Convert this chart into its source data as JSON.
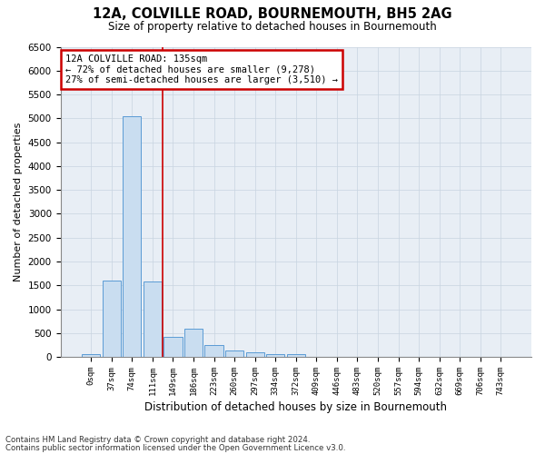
{
  "title_line1": "12A, COLVILLE ROAD, BOURNEMOUTH, BH5 2AG",
  "title_line2": "Size of property relative to detached houses in Bournemouth",
  "xlabel": "Distribution of detached houses by size in Bournemouth",
  "ylabel": "Number of detached properties",
  "categories": [
    "0sqm",
    "37sqm",
    "74sqm",
    "111sqm",
    "149sqm",
    "186sqm",
    "223sqm",
    "260sqm",
    "297sqm",
    "334sqm",
    "372sqm",
    "409sqm",
    "446sqm",
    "483sqm",
    "520sqm",
    "557sqm",
    "594sqm",
    "632sqm",
    "669sqm",
    "706sqm",
    "743sqm"
  ],
  "bar_values": [
    55,
    1600,
    5050,
    1580,
    420,
    600,
    250,
    130,
    100,
    60,
    55,
    0,
    0,
    0,
    0,
    0,
    0,
    0,
    0,
    0,
    0
  ],
  "bar_color": "#c9ddf0",
  "bar_edge_color": "#5b9bd5",
  "vline_color": "#cc0000",
  "vline_pos": 3.5,
  "annotation_text": "12A COLVILLE ROAD: 135sqm\n← 72% of detached houses are smaller (9,278)\n27% of semi-detached houses are larger (3,510) →",
  "annotation_box_color": "#cc0000",
  "ylim": [
    0,
    6500
  ],
  "yticks": [
    0,
    500,
    1000,
    1500,
    2000,
    2500,
    3000,
    3500,
    4000,
    4500,
    5000,
    5500,
    6000,
    6500
  ],
  "grid_color": "#c8d4e0",
  "background_color": "#e8eef5",
  "footer_line1": "Contains HM Land Registry data © Crown copyright and database right 2024.",
  "footer_line2": "Contains public sector information licensed under the Open Government Licence v3.0."
}
